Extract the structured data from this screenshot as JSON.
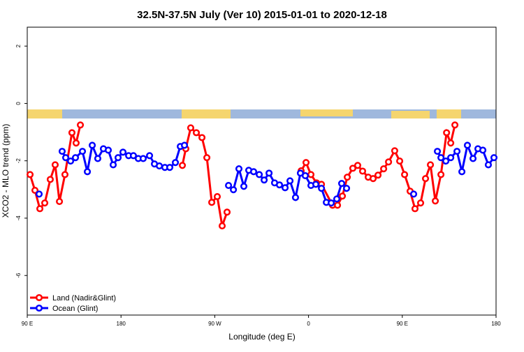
{
  "chart_data": {
    "type": "line",
    "title": "32.5N-37.5N July (Ver 10)   2015-01-01 to 2020-12-18",
    "x_label": "Longitude (deg E)",
    "y_label": "XCO2 - MLO trend (ppm)",
    "xlim": [
      90,
      540
    ],
    "ylim": [
      -7.38,
      2.66
    ],
    "xticks": [
      {
        "value": 90,
        "label": "90 E"
      },
      180,
      {
        "value": 270,
        "label": "90 W"
      },
      {
        "value": 360,
        "label": "0"
      },
      {
        "value": 450,
        "label": "90 E"
      },
      {
        "value": 540,
        "label": "180"
      }
    ],
    "yticks": [
      -6,
      -4,
      -2,
      0,
      2
    ],
    "legend": "bottomleft",
    "series": [
      {
        "name": "Land (Nadir&Glint)",
        "color": "#ff0000",
        "x": [
          92.7,
          97.4,
          102.1,
          106.8,
          112.1,
          116.8,
          120.9,
          126.2,
          132.9,
          136.9,
          141.0,
          null,
          238.9,
          242.2,
          246.9,
          252.3,
          257.7,
          262.4,
          267.1,
          272.4,
          277.1,
          281.8,
          null,
          352.9,
          357.6,
          362.3,
          367.7,
          372.4,
          383.1,
          387.8,
          392.5,
          397.2,
          402.5,
          407.2,
          411.9,
          417.3,
          422.0,
          426.7,
          432.1,
          436.8,
          442.7,
          447.5,
          452.2,
          457.5,
          462.2,
          467.6,
          472.3,
          477.0,
          481.7,
          487.1,
          492.5,
          496.5,
          500.5
        ],
        "values": [
          -2.48,
          -3.03,
          -3.67,
          -3.47,
          -2.65,
          -2.14,
          -3.42,
          -2.48,
          -1.02,
          -1.38,
          -0.75,
          null,
          -2.16,
          -1.58,
          -0.85,
          -1.02,
          -1.19,
          -1.89,
          -3.45,
          -3.25,
          -4.27,
          -3.79,
          null,
          -2.35,
          -2.06,
          -2.48,
          -2.77,
          -2.82,
          -3.55,
          -3.55,
          -3.23,
          -2.57,
          -2.26,
          -2.16,
          -2.36,
          -2.57,
          -2.62,
          -2.5,
          -2.28,
          -2.04,
          -1.65,
          -2.01,
          -2.48,
          -3.06,
          -3.67,
          -3.47,
          -2.62,
          -2.14,
          -3.4,
          -2.48,
          -1.02,
          -1.38,
          -0.75
        ]
      },
      {
        "name": "Ocean (Glint)",
        "color": "#0000ff",
        "x": [
          101.4,
          null,
          123.5,
          126.9,
          131.6,
          136.3,
          143.0,
          147.7,
          152.4,
          157.7,
          163.1,
          167.8,
          172.5,
          177.2,
          181.9,
          187.3,
          191.9,
          196.6,
          201.3,
          207.4,
          212.1,
          216.8,
          222.1,
          226.8,
          232.2,
          236.9,
          240.9,
          null,
          283.2,
          287.9,
          293.2,
          297.9,
          302.6,
          307.3,
          312.7,
          317.4,
          322.1,
          327.4,
          332.1,
          337.5,
          342.2,
          347.5,
          352.2,
          356.9,
          362.3,
          367.0,
          372.4,
          377.1,
          381.8,
          387.1,
          391.8,
          396.5,
          null,
          460.9,
          null,
          483.7,
          487.1,
          491.8,
          496.5,
          502.5,
          507.2,
          512.5,
          517.9,
          522.6,
          527.3,
          532.6,
          538.0
        ],
        "values": [
          -3.16,
          null,
          -1.67,
          -1.89,
          -2.01,
          -1.89,
          -1.67,
          -2.38,
          -1.46,
          -1.92,
          -1.58,
          -1.63,
          -2.14,
          -1.89,
          -1.7,
          -1.82,
          -1.82,
          -1.92,
          -1.92,
          -1.82,
          -2.11,
          -2.18,
          -2.23,
          -2.23,
          -2.06,
          -1.5,
          -1.46,
          null,
          -2.86,
          -3.01,
          -2.28,
          -2.89,
          -2.33,
          -2.38,
          -2.48,
          -2.67,
          -2.43,
          -2.77,
          -2.84,
          -2.94,
          -2.7,
          -3.28,
          -2.43,
          -2.52,
          -2.86,
          -2.82,
          -2.96,
          -3.45,
          -3.47,
          -3.33,
          -2.79,
          -2.96,
          null,
          -3.16,
          null,
          -1.67,
          -1.89,
          -2.01,
          -1.89,
          -1.67,
          -2.38,
          -1.46,
          -1.92,
          -1.58,
          -1.63,
          -2.14,
          -1.89
        ]
      }
    ]
  }
}
